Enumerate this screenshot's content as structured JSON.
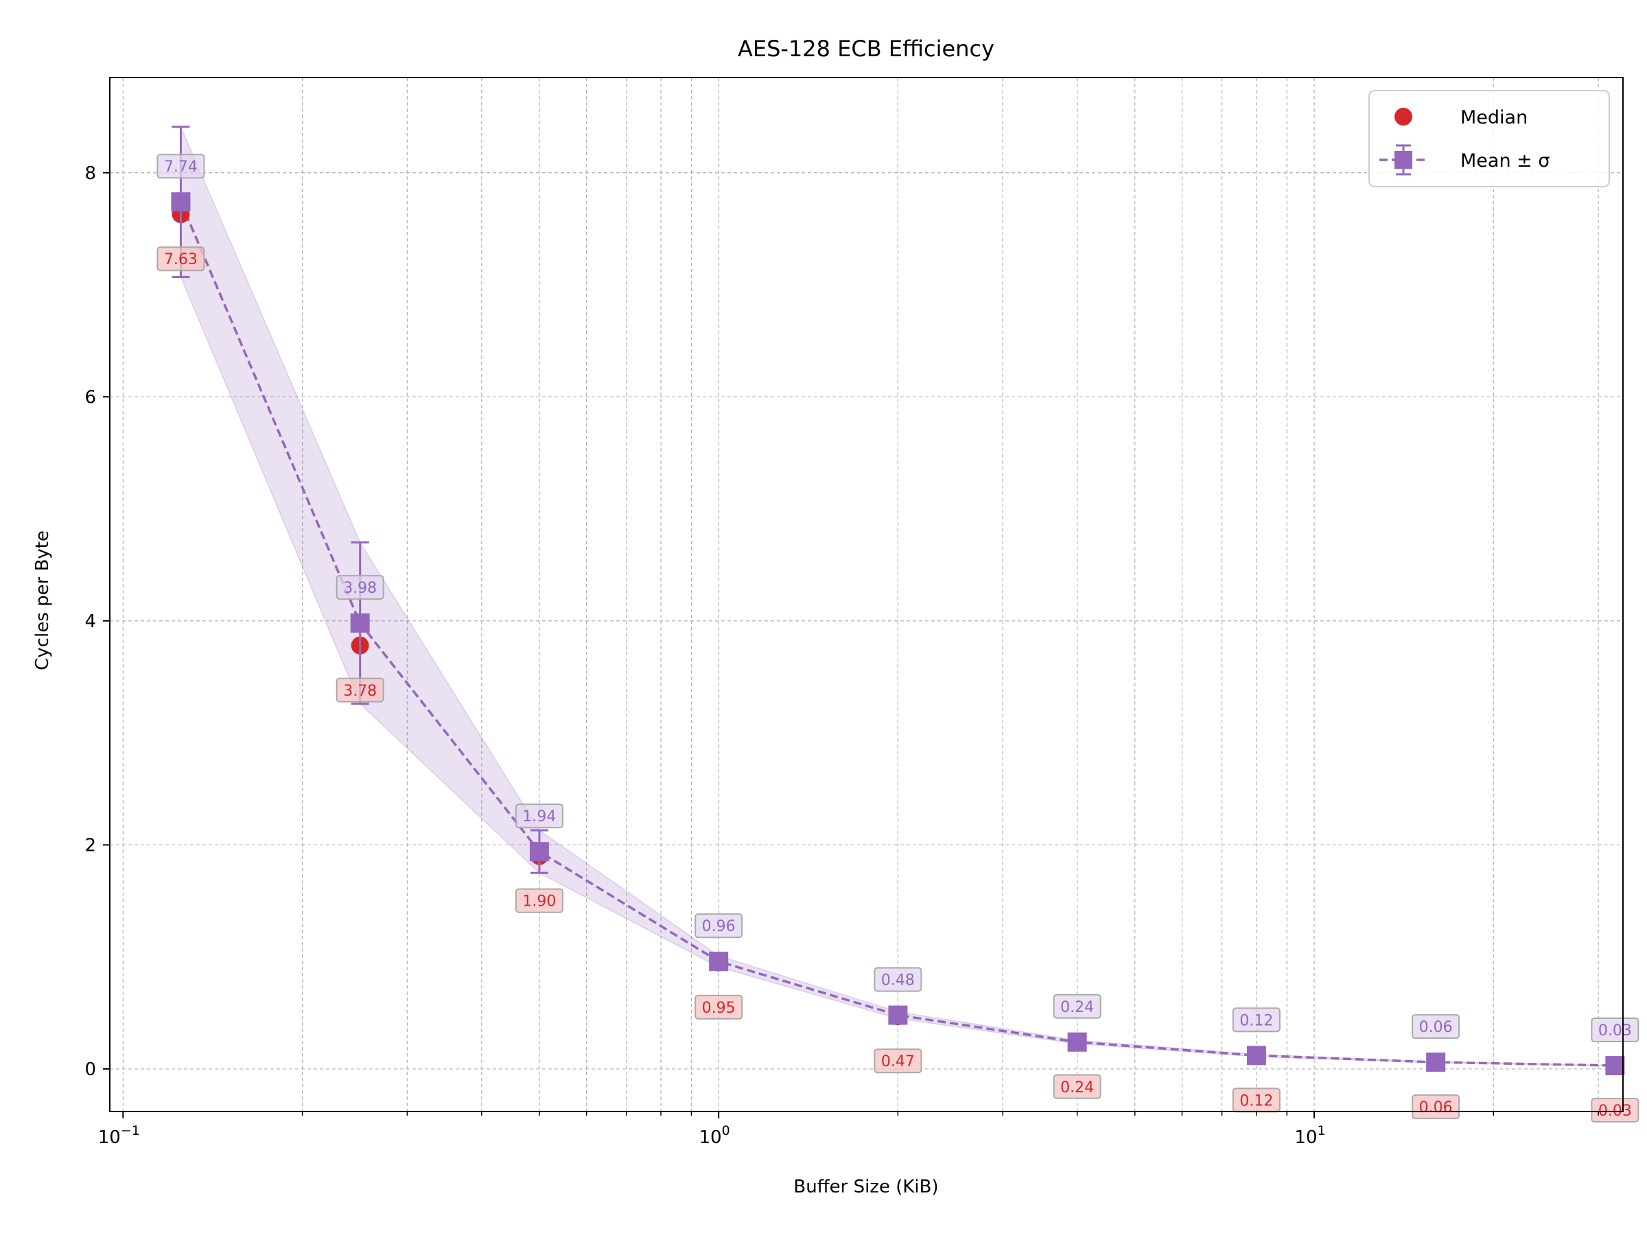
{
  "chart_data": {
    "type": "line",
    "title": "AES-128 ECB Efficiency",
    "xlabel": "Buffer Size (KiB)",
    "ylabel": "Cycles per Byte",
    "xscale": "log",
    "xlim": [
      0.095,
      33
    ],
    "ylim": [
      -0.38,
      8.85
    ],
    "xticks": [
      {
        "value": 0.1,
        "base": "10",
        "exp": "−1"
      },
      {
        "value": 1,
        "base": "10",
        "exp": "0"
      },
      {
        "value": 10,
        "base": "10",
        "exp": "1"
      }
    ],
    "yticks": [
      0,
      2,
      4,
      6,
      8
    ],
    "grid": true,
    "legend_position": "top-right",
    "x": [
      0.125,
      0.25,
      0.5,
      1,
      2,
      4,
      8,
      16,
      32
    ],
    "series": [
      {
        "name": "Median",
        "marker": "circle",
        "color": "#d62728",
        "values": [
          7.63,
          3.78,
          1.9,
          0.95,
          0.47,
          0.24,
          0.12,
          0.06,
          0.03
        ],
        "labels": [
          "7.63",
          "3.78",
          "1.90",
          "0.95",
          "0.47",
          "0.24",
          "0.12",
          "0.06",
          "0.03"
        ]
      },
      {
        "name": "Mean ± σ",
        "marker": "square",
        "line": "dashed",
        "color": "#9467bd",
        "values": [
          7.74,
          3.98,
          1.94,
          0.96,
          0.48,
          0.24,
          0.12,
          0.06,
          0.03
        ],
        "std": [
          0.67,
          0.72,
          0.19,
          0.05,
          0.03,
          0.015,
          0.01,
          0.005,
          0.003
        ],
        "labels": [
          "7.74",
          "3.98",
          "1.94",
          "0.96",
          "0.48",
          "0.24",
          "0.12",
          "0.06",
          "0.03"
        ]
      }
    ]
  }
}
